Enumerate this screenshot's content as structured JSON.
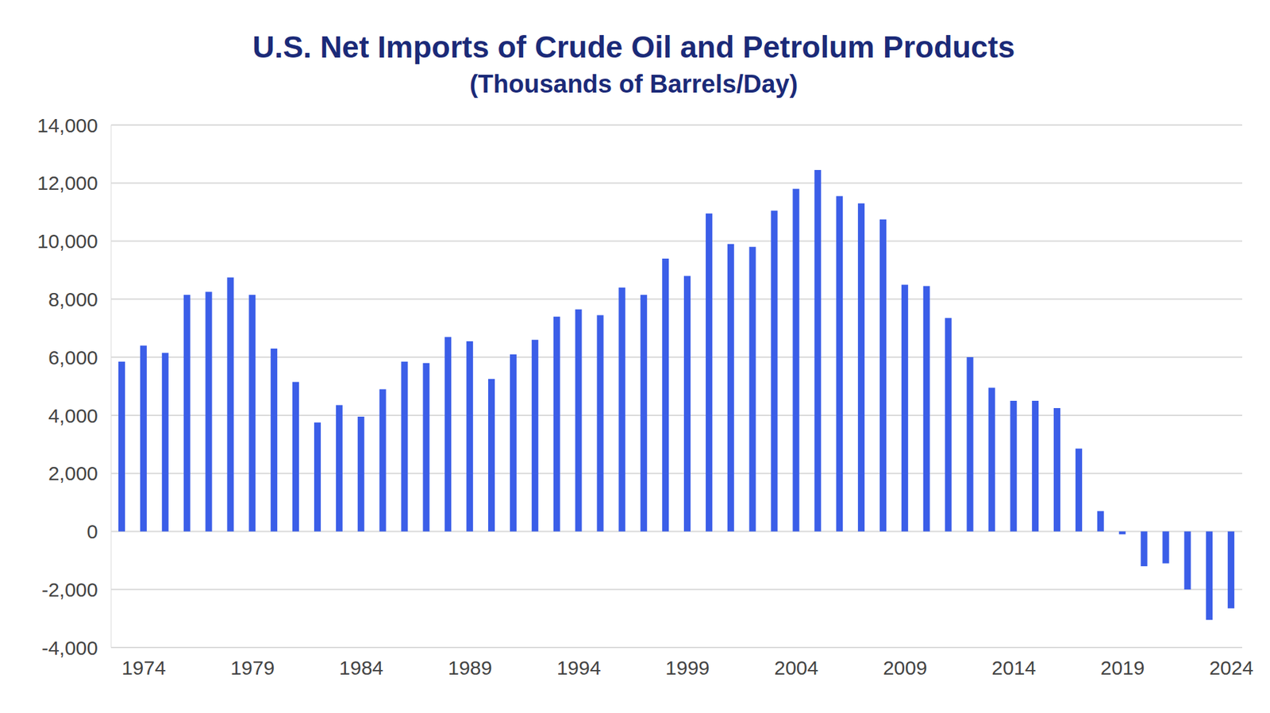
{
  "chart_data": {
    "type": "bar",
    "title": "U.S. Net Imports of Crude Oil and Petrolum Products",
    "subtitle": "(Thousands of Barrels/Day)",
    "categories": [
      null,
      "1974",
      null,
      null,
      null,
      null,
      "1979",
      null,
      null,
      null,
      null,
      "1984",
      null,
      null,
      null,
      null,
      "1989",
      null,
      null,
      null,
      null,
      "1994",
      null,
      null,
      null,
      null,
      "1999",
      null,
      null,
      null,
      null,
      "2004",
      null,
      null,
      null,
      null,
      "2009",
      null,
      null,
      null,
      null,
      "2014",
      null,
      null,
      null,
      null,
      "2019",
      null,
      null,
      null,
      null,
      "2024"
    ],
    "values": [
      5850,
      6400,
      6150,
      8150,
      8250,
      8750,
      8150,
      6300,
      5150,
      3750,
      4350,
      3950,
      4900,
      5850,
      5800,
      6700,
      6550,
      5250,
      6100,
      6600,
      7400,
      7650,
      7450,
      8400,
      8150,
      9400,
      8800,
      10950,
      9900,
      9800,
      11050,
      11800,
      12450,
      11550,
      11300,
      10750,
      8500,
      8450,
      7350,
      6000,
      4950,
      4500,
      4500,
      4250,
      2850,
      700,
      -100,
      -1200,
      -1100,
      -2000,
      -3050,
      -2650
    ],
    "color": "#3b5ee8",
    "ylim": [
      -4000,
      14000
    ],
    "yticks": [
      {
        "value": -4000,
        "label": "-4,000"
      },
      {
        "value": -2000,
        "label": "-2,000"
      },
      0,
      {
        "value": 2000,
        "label": "2,000"
      },
      {
        "value": 4000,
        "label": "4,000"
      },
      {
        "value": 6000,
        "label": "6,000"
      },
      {
        "value": 8000,
        "label": "8,000"
      },
      {
        "value": 10000,
        "label": "10,000"
      },
      {
        "value": 12000,
        "label": "12,000"
      },
      {
        "value": 14000,
        "label": "14,000"
      }
    ],
    "grid": true
  }
}
